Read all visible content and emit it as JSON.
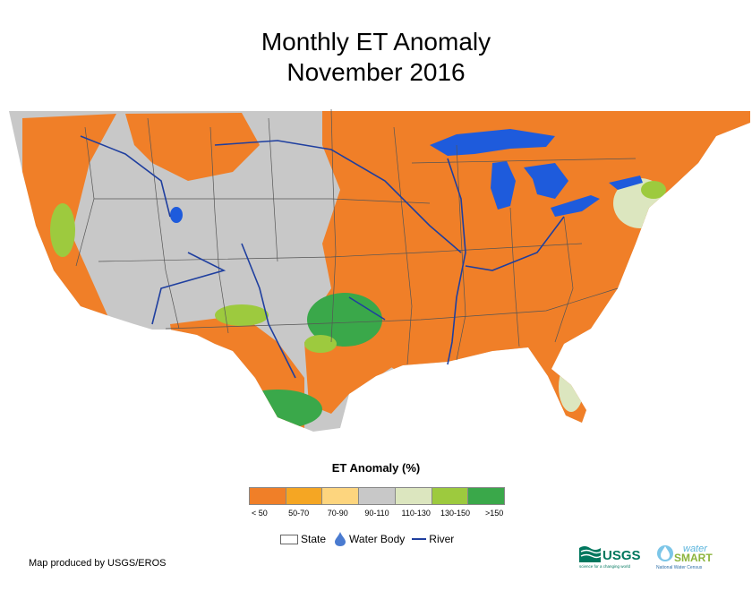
{
  "title": {
    "line1": "Monthly ET Anomaly",
    "line2": "November 2016"
  },
  "legend": {
    "title": "ET Anomaly (%)",
    "classes": [
      {
        "label": "< 50",
        "color": "#f07f28"
      },
      {
        "label": "50-70",
        "color": "#f5a623"
      },
      {
        "label": "70-90",
        "color": "#fdd57e"
      },
      {
        "label": "90-110",
        "color": "#c8c8c8"
      },
      {
        "label": "110-130",
        "color": "#dce6bf"
      },
      {
        "label": "130-150",
        "color": "#9dca3e"
      },
      {
        "label": ">150",
        "color": "#3aa84a"
      }
    ]
  },
  "map_keys": {
    "state": "State",
    "water_body": "Water Body",
    "river": "River"
  },
  "credit": "Map produced by USGS/EROS",
  "logos": {
    "usgs": "USGS",
    "usgs_tagline": "science for a changing world",
    "water": "water",
    "smart": "SMART",
    "census": "National Water Census"
  },
  "colors": {
    "water": "#1e5bdc",
    "river": "#1f3f9f",
    "state_border": "#555555"
  }
}
